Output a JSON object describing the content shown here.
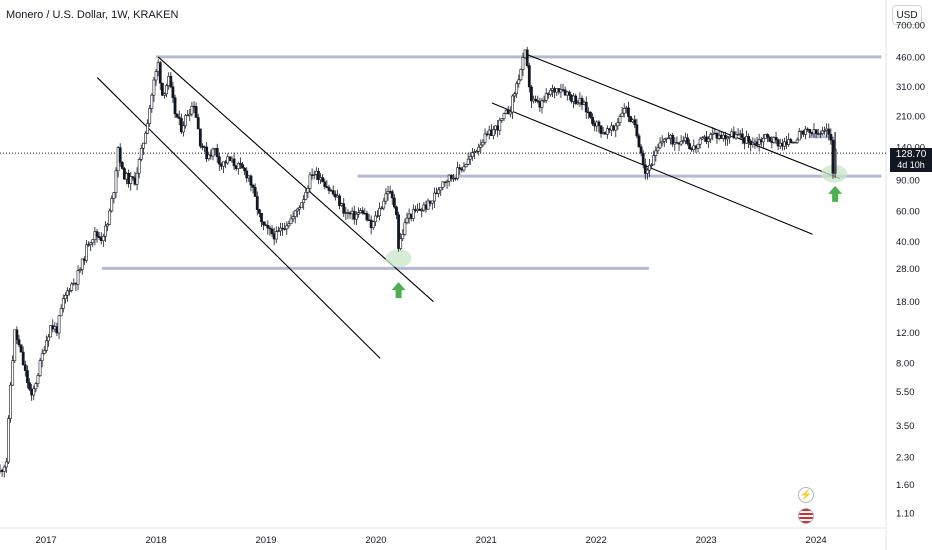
{
  "header": {
    "title": "Monero / U.S. Dollar, 1W, KRAKEN"
  },
  "currency_button": "USD",
  "price_label": {
    "price": "128.70",
    "countdown": "4d 10h"
  },
  "icons": {
    "lightning": "lightning-icon",
    "flag": "us-flag-icon"
  },
  "colors": {
    "candle": "#131722",
    "support": "#b2b9d4",
    "highlight": "#c8e6c9",
    "arrow": "#4caf50",
    "trendline": "#000000"
  },
  "chart_data": {
    "type": "candlestick",
    "title": "Monero / U.S. Dollar, 1W, KRAKEN",
    "y_scale": "log",
    "ylim": [
      0.9,
      750
    ],
    "y_ticks": [
      "700.00",
      "460.00",
      "310.00",
      "210.00",
      "140.00",
      "90.00",
      "60.00",
      "40.00",
      "28.00",
      "18.00",
      "12.00",
      "8.00",
      "5.50",
      "3.50",
      "2.30",
      "1.60",
      "1.10"
    ],
    "x_ticks": [
      "2017",
      "2018",
      "2019",
      "2020",
      "2021",
      "2022",
      "2023",
      "2024"
    ],
    "xlim": [
      "2016-08-01",
      "2024-08-20"
    ],
    "series": [
      {
        "values": [
          [
            "2016-08-01",
            1.9
          ],
          [
            "2016-08-22",
            2.2
          ],
          [
            "2016-09-05",
            6.0
          ],
          [
            "2016-09-19",
            12.0
          ],
          [
            "2016-10-03",
            10.0
          ],
          [
            "2016-10-24",
            7.0
          ],
          [
            "2016-11-14",
            5.0
          ],
          [
            "2016-12-05",
            7.0
          ],
          [
            "2016-12-26",
            10.0
          ],
          [
            "2017-01-16",
            13.0
          ],
          [
            "2017-02-06",
            12.5
          ],
          [
            "2017-02-27",
            18.0
          ],
          [
            "2017-03-20",
            22.0
          ],
          [
            "2017-04-10",
            24.0
          ],
          [
            "2017-05-01",
            30.0
          ],
          [
            "2017-05-22",
            40.0
          ],
          [
            "2017-06-12",
            44.0
          ],
          [
            "2017-07-03",
            42.0
          ],
          [
            "2017-07-24",
            50.0
          ],
          [
            "2017-08-14",
            80.0
          ],
          [
            "2017-08-28",
            140.0
          ],
          [
            "2017-09-11",
            100.0
          ],
          [
            "2017-10-02",
            90.0
          ],
          [
            "2017-10-23",
            90.0
          ],
          [
            "2017-11-13",
            130.0
          ],
          [
            "2017-12-04",
            200.0
          ],
          [
            "2017-12-25",
            330.0
          ],
          [
            "2018-01-08",
            420.0
          ],
          [
            "2018-01-22",
            280.0
          ],
          [
            "2018-02-12",
            340.0
          ],
          [
            "2018-03-05",
            220.0
          ],
          [
            "2018-03-26",
            180.0
          ],
          [
            "2018-04-16",
            220.0
          ],
          [
            "2018-05-07",
            250.0
          ],
          [
            "2018-05-28",
            150.0
          ],
          [
            "2018-06-18",
            125.0
          ],
          [
            "2018-07-16",
            135.0
          ],
          [
            "2018-08-06",
            110.0
          ],
          [
            "2018-08-27",
            118.0
          ],
          [
            "2018-09-17",
            112.0
          ],
          [
            "2018-10-15",
            103.0
          ],
          [
            "2018-11-05",
            95.0
          ],
          [
            "2018-11-26",
            70.0
          ],
          [
            "2018-12-17",
            50.0
          ],
          [
            "2019-01-07",
            46.0
          ],
          [
            "2019-02-04",
            43.0
          ],
          [
            "2019-03-04",
            50.0
          ],
          [
            "2019-04-01",
            55.0
          ],
          [
            "2019-05-06",
            72.0
          ],
          [
            "2019-06-03",
            100.0
          ],
          [
            "2019-07-01",
            95.0
          ],
          [
            "2019-07-29",
            80.0
          ],
          [
            "2019-08-26",
            70.0
          ],
          [
            "2019-09-23",
            58.0
          ],
          [
            "2019-10-21",
            56.0
          ],
          [
            "2019-11-18",
            60.0
          ],
          [
            "2019-12-16",
            48.0
          ],
          [
            "2020-01-20",
            65.0
          ],
          [
            "2020-02-10",
            80.0
          ],
          [
            "2020-03-09",
            60.0
          ],
          [
            "2020-03-16",
            37.0
          ],
          [
            "2020-04-13",
            55.0
          ],
          [
            "2020-05-18",
            60.0
          ],
          [
            "2020-06-29",
            66.0
          ],
          [
            "2020-08-10",
            90.0
          ],
          [
            "2020-09-14",
            95.0
          ],
          [
            "2020-10-19",
            110.0
          ],
          [
            "2020-11-16",
            125.0
          ],
          [
            "2020-12-14",
            150.0
          ],
          [
            "2021-01-11",
            165.0
          ],
          [
            "2021-02-15",
            190.0
          ],
          [
            "2021-03-22",
            235.0
          ],
          [
            "2021-04-26",
            390.0
          ],
          [
            "2021-05-10",
            480.0
          ],
          [
            "2021-05-31",
            260.0
          ],
          [
            "2021-06-28",
            240.0
          ],
          [
            "2021-08-02",
            290.0
          ],
          [
            "2021-09-06",
            310.0
          ],
          [
            "2021-10-11",
            270.0
          ],
          [
            "2021-11-15",
            250.0
          ],
          [
            "2021-12-20",
            200.0
          ],
          [
            "2022-01-24",
            170.0
          ],
          [
            "2022-02-28",
            175.0
          ],
          [
            "2022-04-04",
            240.0
          ],
          [
            "2022-05-09",
            180.0
          ],
          [
            "2022-05-30",
            135.0
          ],
          [
            "2022-06-13",
            100.0
          ],
          [
            "2022-07-11",
            120.0
          ],
          [
            "2022-08-15",
            160.0
          ],
          [
            "2022-09-19",
            150.0
          ],
          [
            "2022-10-24",
            160.0
          ],
          [
            "2022-11-14",
            135.0
          ],
          [
            "2022-12-19",
            150.0
          ],
          [
            "2023-01-23",
            165.0
          ],
          [
            "2023-02-27",
            160.0
          ],
          [
            "2023-04-03",
            165.0
          ],
          [
            "2023-05-08",
            155.0
          ],
          [
            "2023-06-12",
            148.0
          ],
          [
            "2023-07-17",
            160.0
          ],
          [
            "2023-08-21",
            150.0
          ],
          [
            "2023-09-25",
            145.0
          ],
          [
            "2023-10-30",
            160.0
          ],
          [
            "2023-12-04",
            170.0
          ],
          [
            "2024-01-08",
            165.0
          ],
          [
            "2024-02-05",
            170.0
          ],
          [
            "2024-02-19",
            160.0
          ],
          [
            "2024-02-26",
            103.0
          ],
          [
            "2024-03-04",
            128.7
          ]
        ]
      }
    ],
    "annotations": [
      {
        "type": "horizontal_line",
        "price": 460,
        "from": "2018-01-01",
        "to": "2024-08-05"
      },
      {
        "type": "horizontal_line",
        "price": 28,
        "from": "2017-07-05",
        "to": "2022-06-25"
      },
      {
        "type": "horizontal_line",
        "price": 95,
        "from": "2019-11-01",
        "to": "2024-08-05"
      },
      {
        "type": "horizontal_line",
        "price": 160,
        "from": "2023-12-08",
        "to": "2024-02-24"
      },
      {
        "type": "trendline",
        "from": [
          "2018-01-08",
          460
        ],
        "to": [
          "2020-07-10",
          18
        ]
      },
      {
        "type": "trendline",
        "from": [
          "2017-06-20",
          350
        ],
        "to": [
          "2020-01-15",
          8.5
        ]
      },
      {
        "type": "trendline",
        "from": [
          "2021-05-10",
          480
        ],
        "to": [
          "2024-03-20",
          92
        ]
      },
      {
        "type": "trendline",
        "from": [
          "2021-01-20",
          250
        ],
        "to": [
          "2023-12-20",
          44
        ]
      },
      {
        "type": "ellipse_highlight",
        "at": [
          "2020-03-16",
          32
        ]
      },
      {
        "type": "ellipse_highlight",
        "at": [
          "2024-03-01",
          98
        ]
      },
      {
        "type": "up_arrow",
        "at": [
          "2020-03-16",
          21
        ]
      },
      {
        "type": "up_arrow",
        "at": [
          "2024-03-04",
          75
        ]
      }
    ],
    "last_price": 128.7
  }
}
